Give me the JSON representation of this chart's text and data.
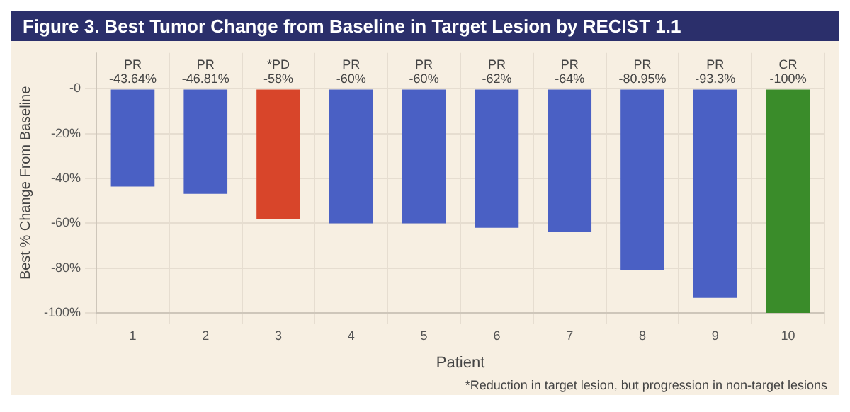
{
  "chart_data": {
    "type": "bar",
    "title": "Figure 3. Best Tumor Change from Baseline in Target Lesion by RECIST 1.1",
    "categories": [
      "1",
      "2",
      "3",
      "4",
      "5",
      "6",
      "7",
      "8",
      "9",
      "10"
    ],
    "values": [
      -43.64,
      -46.81,
      -58,
      -60,
      -60,
      -62,
      -64,
      -80.95,
      -93.3,
      -100
    ],
    "colors": [
      "#4a60c4",
      "#4a60c4",
      "#d8452a",
      "#4a60c4",
      "#4a60c4",
      "#4a60c4",
      "#4a60c4",
      "#4a60c4",
      "#4a60c4",
      "#3a8c2a"
    ],
    "value_labels": [
      "PR\n-43.64%",
      "PR\n-46.81%",
      "*PD\n-58%",
      "PR\n-60%",
      "PR\n-60%",
      "PR\n-62%",
      "PR\n-64%",
      "PR\n-80.95%",
      "PR\n-93.3%",
      "CR\n-100%"
    ],
    "xlabel": "Patient",
    "ylabel": "Best % Change From Baseline",
    "ylim": [
      -100,
      16
    ],
    "yticks": [
      {
        "value": 0,
        "label": "-0"
      },
      {
        "value": -20,
        "label": "-20%"
      },
      {
        "value": -40,
        "label": "-40%"
      },
      {
        "value": -60,
        "label": "-60%"
      },
      {
        "value": -80,
        "label": "-80%"
      },
      {
        "value": -100,
        "label": "-100%"
      }
    ],
    "grid": true,
    "legend": false,
    "annotations": [
      "*Reduction in target lesion, but progression in non-target lesions"
    ]
  }
}
